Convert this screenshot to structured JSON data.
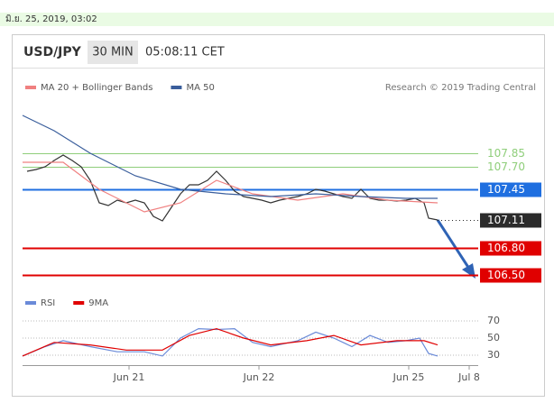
{
  "top_bar": {
    "timestamp": "มิ.ย. 25, 2019, 03:02"
  },
  "header": {
    "symbol": "USD/JPY",
    "interval": "30 MIN",
    "time": "05:08:11 CET"
  },
  "chart_data": [
    {
      "type": "line",
      "source": "Research © 2019 Trading Central",
      "xlim": [
        0,
        100
      ],
      "ylim": [
        106.35,
        108.45
      ],
      "series": [
        {
          "color": "#333333",
          "x": [
            1,
            3,
            5,
            7,
            9,
            11,
            13,
            15,
            17,
            19,
            21,
            23,
            25,
            27,
            29,
            31,
            33,
            35,
            37,
            39,
            41,
            43,
            45,
            47,
            49,
            51,
            53,
            55,
            57,
            59,
            61,
            63,
            65,
            67,
            69,
            71,
            73,
            75,
            77,
            79,
            81,
            83,
            85,
            87,
            89,
            90,
            92
          ],
          "values": [
            107.65,
            107.67,
            107.7,
            107.77,
            107.83,
            107.77,
            107.7,
            107.55,
            107.3,
            107.27,
            107.33,
            107.3,
            107.33,
            107.3,
            107.15,
            107.1,
            107.25,
            107.4,
            107.5,
            107.5,
            107.55,
            107.65,
            107.55,
            107.43,
            107.37,
            107.35,
            107.33,
            107.3,
            107.33,
            107.35,
            107.37,
            107.4,
            107.45,
            107.43,
            107.4,
            107.37,
            107.35,
            107.45,
            107.35,
            107.33,
            107.33,
            107.32,
            107.33,
            107.35,
            107.3,
            107.13,
            107.11
          ]
        },
        {
          "name": "MA 20 + Bollinger Bands",
          "color": "#f08080",
          "x": [
            0,
            9,
            17,
            27,
            35,
            43,
            51,
            61,
            71,
            81,
            92
          ],
          "values": [
            107.75,
            107.75,
            107.45,
            107.2,
            107.3,
            107.55,
            107.4,
            107.33,
            107.4,
            107.33,
            107.3
          ]
        },
        {
          "name": "MA 50",
          "color": "#3a5e9c",
          "x": [
            0,
            7,
            15,
            25,
            35,
            45,
            55,
            65,
            75,
            85,
            92
          ],
          "values": [
            108.27,
            108.1,
            107.85,
            107.6,
            107.45,
            107.4,
            107.37,
            107.4,
            107.37,
            107.35,
            107.35
          ]
        }
      ],
      "levels": [
        {
          "value": 107.85,
          "label": "107.85",
          "color": "#8fce7a",
          "style": "solid",
          "labelbox": false
        },
        {
          "value": 107.7,
          "label": "107.70",
          "color": "#8fce7a",
          "style": "solid",
          "labelbox": false
        },
        {
          "value": 107.45,
          "label": "107.45",
          "color": "#1f6fe0",
          "style": "solid",
          "labelbox": true
        },
        {
          "value": 107.11,
          "label": "107.11",
          "color": "#2b2b2b",
          "style": "dotted",
          "labelbox": true
        },
        {
          "value": 106.8,
          "label": "106.80",
          "color": "#e00000",
          "style": "solid",
          "labelbox": true
        },
        {
          "value": 106.5,
          "label": "106.50",
          "color": "#e00000",
          "style": "solid",
          "labelbox": true
        }
      ]
    },
    {
      "type": "line",
      "xlim": [
        0,
        100
      ],
      "ylim": [
        18,
        82
      ],
      "yticks": [
        30,
        50,
        70
      ],
      "xticks": [
        {
          "value": 23.6,
          "label": "Jun 21"
        },
        {
          "value": 52.4,
          "label": "Jun 22"
        },
        {
          "value": 85.6,
          "label": "Jun 25"
        },
        {
          "value": 99,
          "label": "Jul 8"
        }
      ],
      "series": [
        {
          "name": "RSI",
          "color": "#6a8ad8",
          "x": [
            0,
            5,
            9,
            15,
            21,
            27,
            31,
            35,
            39,
            43,
            47,
            51,
            55,
            61,
            65,
            69,
            73,
            77,
            81,
            85,
            88,
            90,
            92
          ],
          "values": [
            29,
            40,
            47,
            40,
            34,
            34,
            29,
            50,
            61,
            60,
            61,
            45,
            40,
            47,
            57,
            50,
            40,
            53,
            45,
            47,
            50,
            32,
            29
          ]
        },
        {
          "name": "9MA",
          "color": "#e00000",
          "x": [
            0,
            7,
            15,
            23,
            31,
            37,
            43,
            49,
            55,
            63,
            69,
            75,
            83,
            89,
            92
          ],
          "values": [
            29,
            45,
            42,
            36,
            36,
            53,
            61,
            50,
            42,
            47,
            53,
            42,
            47,
            47,
            42
          ]
        }
      ]
    }
  ]
}
